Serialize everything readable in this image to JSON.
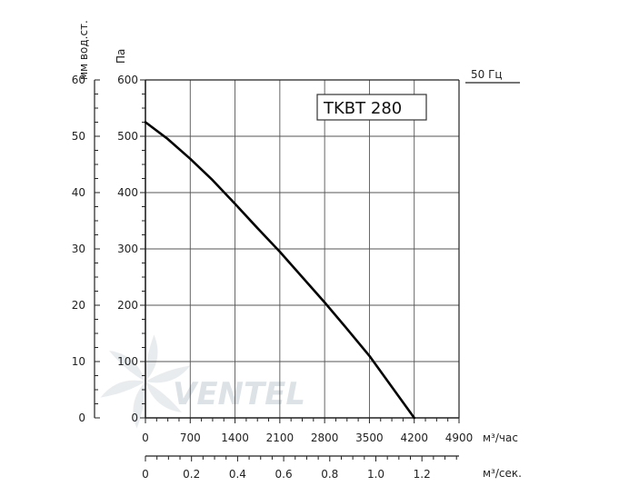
{
  "chart_data": {
    "type": "line",
    "model_label": "TKBT 280",
    "frequency_label": "50 Гц",
    "watermark": "VENTEL",
    "x_axis": {
      "label": "м³/час",
      "range": [
        0,
        4900
      ],
      "ticks": [
        "0",
        "700",
        "1400",
        "2100",
        "2800",
        "3500",
        "4200",
        "4900"
      ]
    },
    "x2_axis": {
      "label": "м³/сек.",
      "range": [
        0,
        1.361
      ],
      "ticks": [
        "0",
        "0.2",
        "0.4",
        "0.6",
        "0.8",
        "1.0",
        "1.2"
      ]
    },
    "y_axis": {
      "label": "Па",
      "range": [
        0,
        600
      ],
      "ticks": [
        "0",
        "100",
        "200",
        "300",
        "400",
        "500",
        "600"
      ]
    },
    "y2_axis": {
      "label": "мм вод.ст.",
      "range": [
        0,
        60
      ],
      "ticks": [
        "0",
        "10",
        "20",
        "30",
        "40",
        "50",
        "60"
      ]
    },
    "grid": true,
    "series": [
      {
        "x": [
          0,
          350,
          700,
          1050,
          1400,
          1750,
          2100,
          2450,
          2800,
          3150,
          3500,
          3850,
          4200
        ],
        "y": [
          525,
          495,
          460,
          422,
          380,
          337,
          295,
          250,
          205,
          158,
          110,
          55,
          0
        ]
      }
    ]
  }
}
